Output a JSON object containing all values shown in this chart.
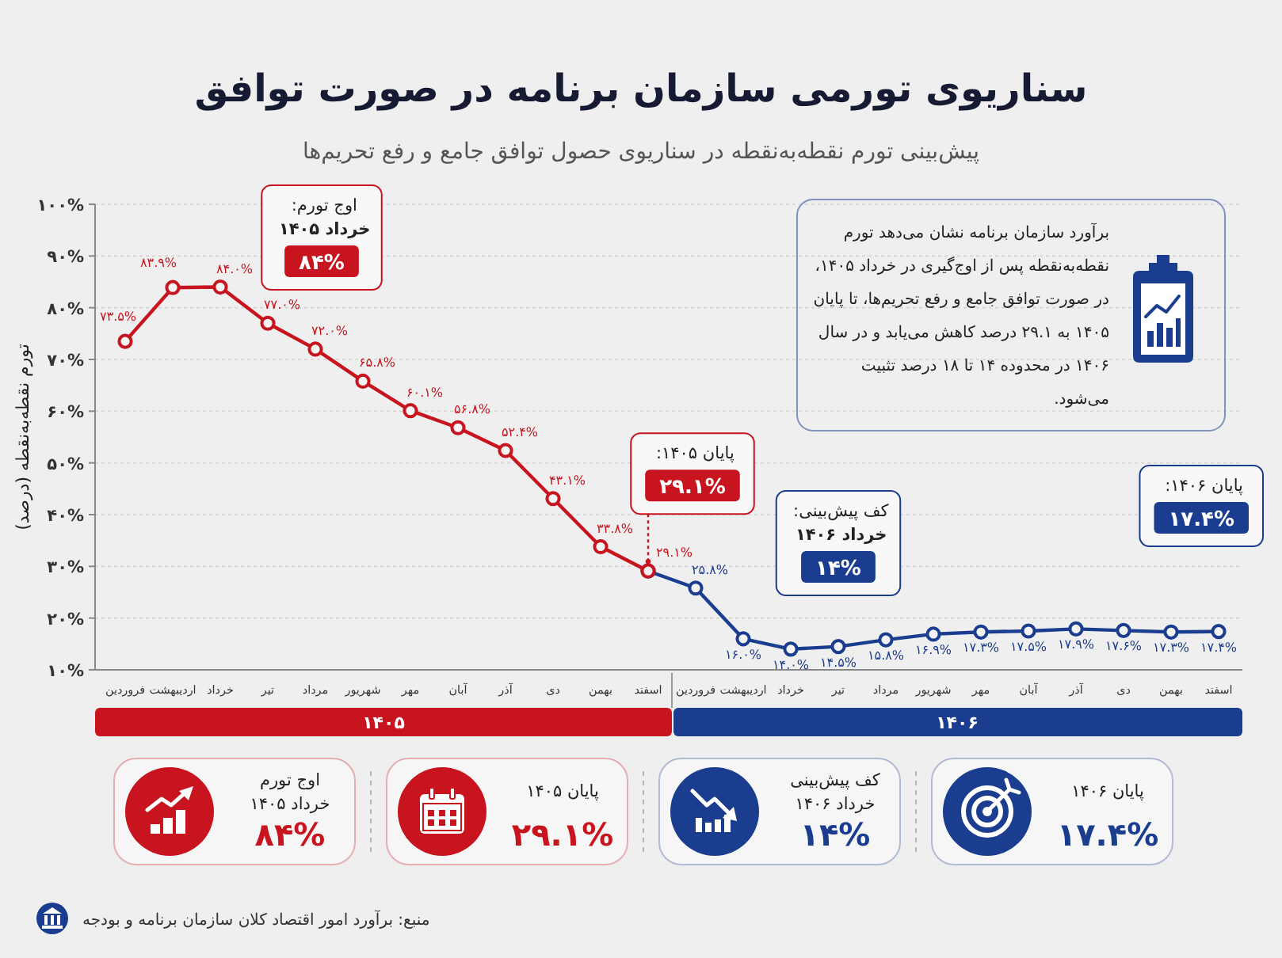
{
  "chart_data": [
    {
      "type": "line",
      "title": "سناریوی تورمی سازمان برنامه در صورت توافق",
      "subtitle": "پیش‌بینی تورم نقطه‌به‌نقطه در سناریوی حصول توافق جامع و رفع تحریم‌ها",
      "ylabel": "تورم نقطه‌به‌نقطه (درصد)",
      "categories": [
        "فروردین",
        "اردیبهشت",
        "خرداد",
        "تیر",
        "مرداد",
        "شهریور",
        "مهر",
        "آبان",
        "آذر",
        "دی",
        "بهمن",
        "اسفند",
        "فروردین",
        "اردیبهشت",
        "خرداد",
        "تیر",
        "مرداد",
        "شهریور",
        "مهر",
        "آبان",
        "آذر",
        "دی",
        "بهمن",
        "اسفند"
      ],
      "series": [
        {
          "name": "۱۴۰۵",
          "color": "#c8141e",
          "values": [
            73.5,
            83.9,
            84.0,
            77.0,
            72.0,
            65.8,
            60.1,
            56.8,
            52.4,
            43.1,
            33.8,
            29.1,
            null,
            null,
            null,
            null,
            null,
            null,
            null,
            null,
            null,
            null,
            null,
            null
          ],
          "value_labels": [
            "۷۳.۵%",
            "۸۳.۹%",
            "۸۴.۰%",
            "۷۷.۰%",
            "۷۲.۰%",
            "۶۵.۸%",
            "۶۰.۱%",
            "۵۶.۸%",
            "۵۲.۴%",
            "۴۳.۱%",
            "۳۳.۸%",
            "۲۹.۱%",
            null,
            null,
            null,
            null,
            null,
            null,
            null,
            null,
            null,
            null,
            null,
            null
          ]
        },
        {
          "name": "۱۴۰۶",
          "color": "#1b3d8f",
          "values": [
            null,
            null,
            null,
            null,
            null,
            null,
            null,
            null,
            null,
            null,
            null,
            29.1,
            25.8,
            16.0,
            14.0,
            14.5,
            15.8,
            16.9,
            17.3,
            17.5,
            17.9,
            17.6,
            17.3,
            17.4
          ],
          "value_labels": [
            null,
            null,
            null,
            null,
            null,
            null,
            null,
            null,
            null,
            null,
            null,
            null,
            "۲۵.۸%",
            "۱۶.۰%",
            "۱۴.۰%",
            "۱۴.۵%",
            "۱۵.۸%",
            "۱۶.۹%",
            "۱۷.۳%",
            "۱۷.۵%",
            "۱۷.۹%",
            "۱۷.۶%",
            "۱۷.۳%",
            "۱۷.۴%"
          ]
        }
      ],
      "ylim": [
        10,
        100
      ],
      "yticks": [
        {
          "value": 10,
          "label": "۱۰%"
        },
        {
          "value": 20,
          "label": "۲۰%"
        },
        {
          "value": 30,
          "label": "۳۰%"
        },
        {
          "value": 40,
          "label": "۴۰%"
        },
        {
          "value": 50,
          "label": "۵۰%"
        },
        {
          "value": 60,
          "label": "۶۰%"
        },
        {
          "value": 70,
          "label": "۷۰%"
        },
        {
          "value": 80,
          "label": "۸۰%"
        },
        {
          "value": 90,
          "label": "۹۰%"
        },
        {
          "value": 100,
          "label": "۱۰۰%"
        }
      ],
      "grid": "y",
      "marker": "circle",
      "line_style": "solid",
      "legend": "bottom",
      "annotations": [
        "اوج تورم:\nخرداد ۱۴۰۵\n۸۴%",
        {
          "text": "پایان ۱۴۰۵:\n۲۹.۱%",
          "x": "اسفند",
          "y": 29.1
        },
        "کف پیش‌بینی:\nخرداد ۱۴۰۶\n۱۴%",
        "پایان ۱۴۰۶:\n۱۷.۴%",
        "برآورد سازمان برنامه نشان می‌دهد تورم نقطه‌به‌نقطه پس از اوج‌گیری در خرداد ۱۴۰۵، در صورت توافق جامع و رفع تحریم‌ها، تا پایان ۱۴۰۵ به ۲۹.۱ درصد کاهش می‌یابد و در سال ۱۴۰۶ در محدوده ۱۴ تا ۱۸ درصد تثبیت می‌شود.",
        "منبع: برآورد امور اقتصاد کلان سازمان برنامه و بودجه"
      ]
    },
    {
      "type": "other",
      "title": "پایان ۱۴۰۶",
      "annotations": [
        "۱۷.۴%"
      ],
      "color": "#1b3d8f"
    },
    {
      "type": "other",
      "title": "کف پیش‌بینی",
      "subtitle": "خرداد ۱۴۰۶",
      "annotations": [
        "۱۴%"
      ],
      "color": "#1b3d8f"
    },
    {
      "type": "other",
      "title": "پایان ۱۴۰۵",
      "annotations": [
        "۲۹.۱%"
      ],
      "color": "#c8141e"
    },
    {
      "type": "other",
      "title": "اوج تورم",
      "subtitle": "خرداد ۱۴۰۵",
      "annotations": [
        "۸۴%"
      ],
      "color": "#c8141e"
    }
  ]
}
